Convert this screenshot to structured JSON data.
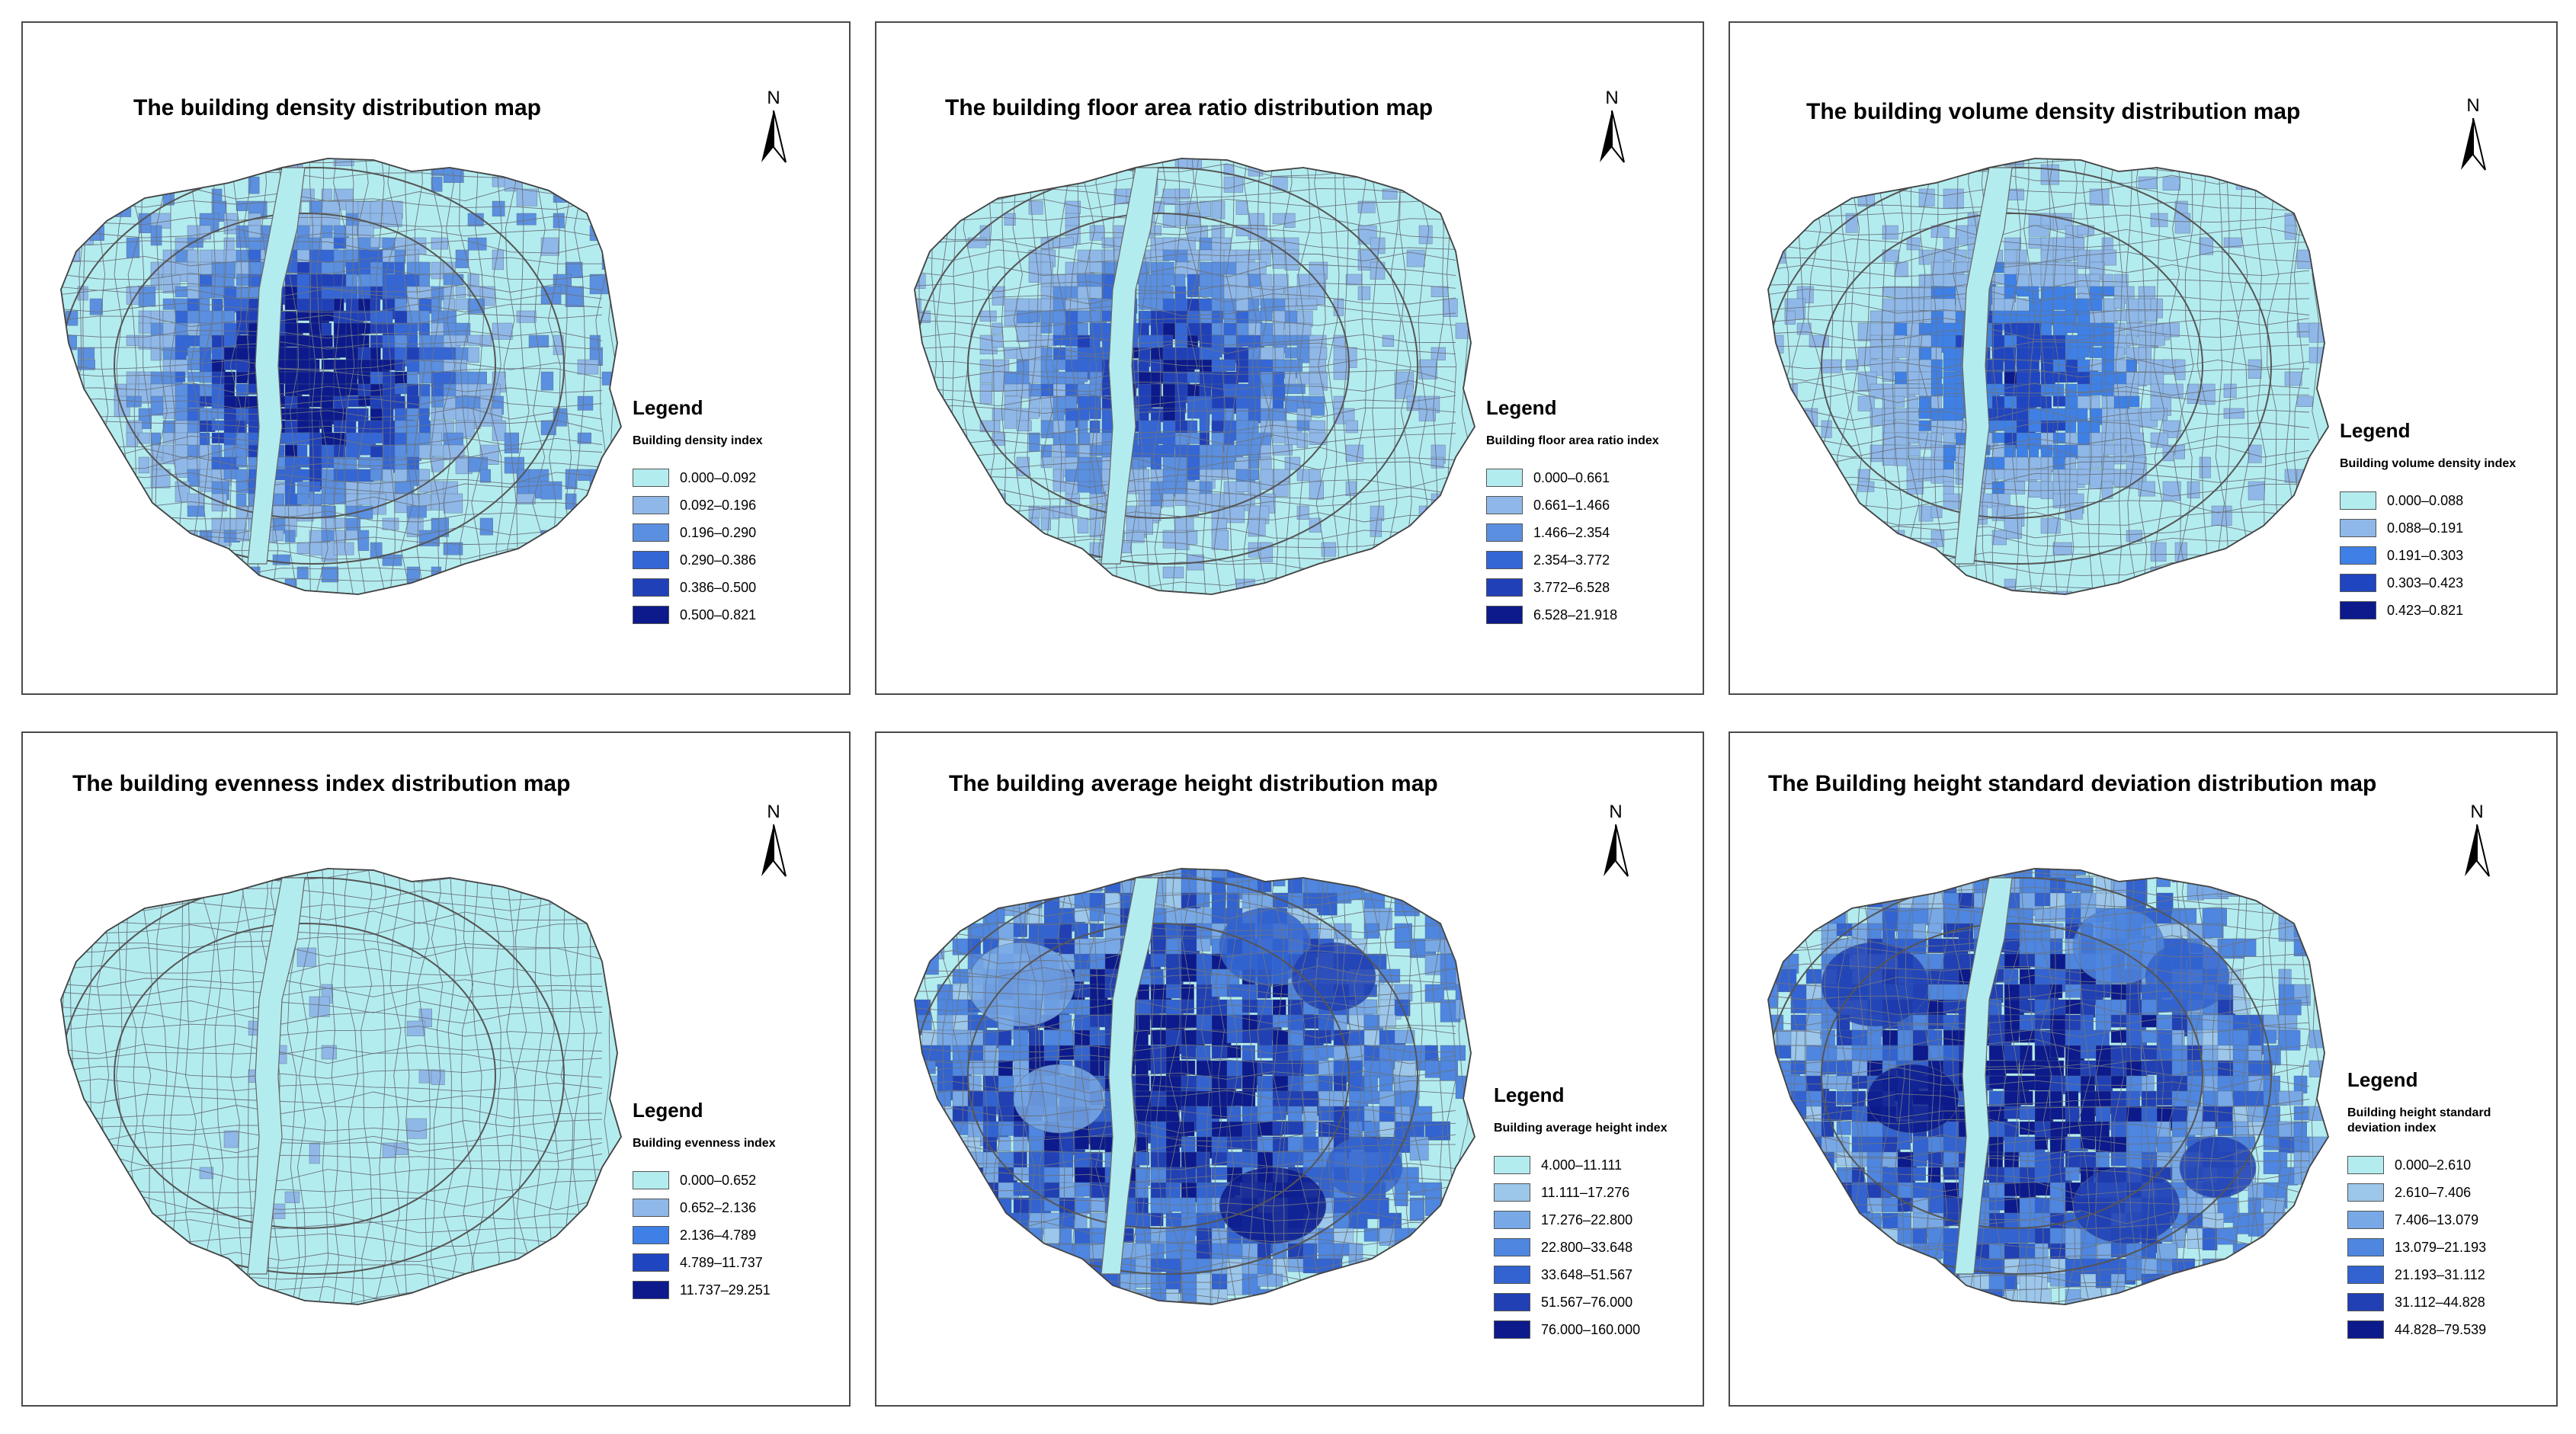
{
  "panels": [
    {
      "id": "density",
      "title": "The building density distribution map",
      "north": "N",
      "legend_title": "Legend",
      "legend_subtitle": "Building  density index",
      "classes": [
        "0.000–0.092",
        "0.092–0.196",
        "0.196–0.290",
        "0.290–0.386",
        "0.386–0.500",
        "0.500–0.821"
      ],
      "colors": [
        "#b3ecef",
        "#8fb8e8",
        "#5b8fe0",
        "#3466d6",
        "#2040b8",
        "#0c1a8c"
      ],
      "pattern": "central_high"
    },
    {
      "id": "far",
      "title": "The building floor area ratio distribution map",
      "north": "N",
      "legend_title": "Legend",
      "legend_subtitle": "Building floor area ratio index",
      "classes": [
        "0.000–0.661",
        "0.661–1.466",
        "1.466–2.354",
        "2.354–3.772",
        "3.772–6.528",
        "6.528–21.918"
      ],
      "colors": [
        "#b3ecef",
        "#8fb8e8",
        "#5b8fe0",
        "#3466d6",
        "#2040b8",
        "#0c1a8c"
      ],
      "pattern": "central_mid"
    },
    {
      "id": "volume",
      "title": "The building volume density distribution map",
      "north": "N",
      "legend_title": "Legend",
      "legend_subtitle": "Building volume density index",
      "classes": [
        "0.000–0.088",
        "0.088–0.191",
        "0.191–0.303",
        "0.303–0.423",
        "0.423–0.821"
      ],
      "colors": [
        "#b3ecef",
        "#8fb8e8",
        "#3f80e6",
        "#2045c0",
        "#0c1a8c"
      ],
      "pattern": "central_low"
    },
    {
      "id": "evenness",
      "title": "The building evenness index distribution map",
      "north": "N",
      "legend_title": "Legend",
      "legend_subtitle": "Building evenness index",
      "classes": [
        "0.000–0.652",
        "0.652–2.136",
        "2.136–4.789",
        "4.789–11.737",
        "11.737–29.251"
      ],
      "colors": [
        "#b3ecef",
        "#8fb8e8",
        "#3f80e6",
        "#2045c0",
        "#0c1a8c"
      ],
      "pattern": "flat"
    },
    {
      "id": "avgheight",
      "title": "The building average height distribution map",
      "north": "N",
      "legend_title": "Legend",
      "legend_subtitle": "Building average height index",
      "classes": [
        "4.000–11.111",
        "11.111–17.276",
        "17.276–22.800",
        "22.800–33.648",
        "33.648–51.567",
        "51.567–76.000",
        "76.000–160.000"
      ],
      "colors": [
        "#b3ecef",
        "#9cc7ea",
        "#78a9e6",
        "#4e86e0",
        "#3263d0",
        "#2040b4",
        "#0c1a8c"
      ],
      "pattern": "wide_high"
    },
    {
      "id": "heightsd",
      "title": "The Building height standard deviation distribution map",
      "north": "N",
      "legend_title": "Legend",
      "legend_subtitle": "Building height standard\ndeviation index",
      "classes": [
        "0.000–2.610",
        "2.610–7.406",
        "7.406–13.079",
        "13.079–21.193",
        "21.193–31.112",
        "31.112–44.828",
        "44.828–79.539"
      ],
      "colors": [
        "#b3ecef",
        "#9cc7ea",
        "#78a9e6",
        "#4e86e0",
        "#3263d0",
        "#2040b4",
        "#0c1a8c"
      ],
      "pattern": "wide_high"
    }
  ]
}
